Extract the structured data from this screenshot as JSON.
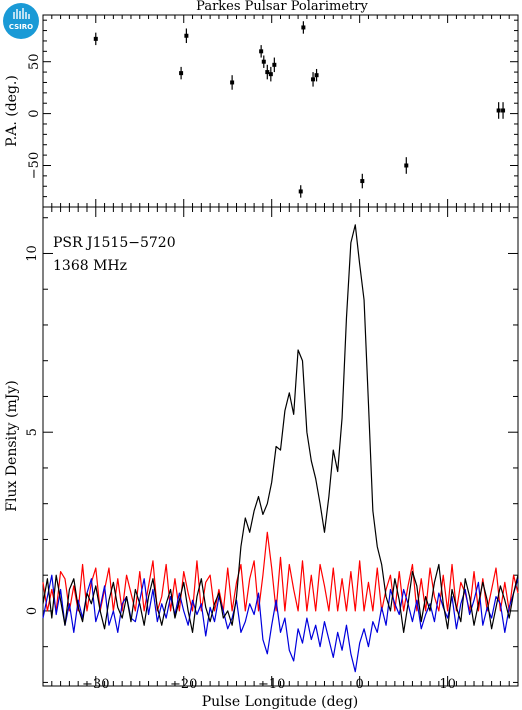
{
  "logo": {
    "text": "CSIRO",
    "color": "#1a9ad6"
  },
  "chart_data": [
    {
      "type": "scatter",
      "title": "Parkes Pulsar Polarimetry",
      "xlabel": "",
      "ylabel": "P.A. (deg.)",
      "xlim": [
        -36,
        18
      ],
      "ylim": [
        -90,
        95
      ],
      "yticks": [
        50,
        0,
        -50
      ],
      "ytick_labels": [
        "50",
        "0",
        "−50"
      ],
      "points": [
        {
          "x": -30.0,
          "y": 72,
          "err": 6
        },
        {
          "x": -20.3,
          "y": 39,
          "err": 6
        },
        {
          "x": -19.7,
          "y": 75,
          "err": 7
        },
        {
          "x": -14.5,
          "y": 30,
          "err": 7
        },
        {
          "x": -11.2,
          "y": 60,
          "err": 6
        },
        {
          "x": -10.9,
          "y": 50,
          "err": 6
        },
        {
          "x": -10.5,
          "y": 40,
          "err": 7
        },
        {
          "x": -10.1,
          "y": 38,
          "err": 7
        },
        {
          "x": -9.7,
          "y": 47,
          "err": 7
        },
        {
          "x": -6.4,
          "y": 83,
          "err": 6
        },
        {
          "x": -6.7,
          "y": -75,
          "err": 6
        },
        {
          "x": -5.3,
          "y": 33,
          "err": 7
        },
        {
          "x": -4.9,
          "y": 37,
          "err": 6
        },
        {
          "x": 0.3,
          "y": -65,
          "err": 7
        },
        {
          "x": 5.3,
          "y": -50,
          "err": 8
        },
        {
          "x": 15.8,
          "y": 3,
          "err": 8
        },
        {
          "x": 16.3,
          "y": 3,
          "err": 8
        }
      ]
    },
    {
      "type": "line",
      "title": "",
      "xlabel": "Pulse Longitude (deg)",
      "ylabel": "Flux Density (mJy)",
      "xlim": [
        -36,
        18
      ],
      "ylim": [
        -2.1,
        11.3
      ],
      "xticks": [
        -30,
        -20,
        -10,
        0,
        10
      ],
      "xtick_labels": [
        "−30",
        "−20",
        "−10",
        "0",
        "10"
      ],
      "yticks": [
        0,
        5,
        10
      ],
      "ytick_labels": [
        "0",
        "5",
        "10"
      ],
      "annotations": [
        "PSR J1515−5720",
        "1368 MHz"
      ],
      "series": [
        {
          "color": "#000000",
          "x": [
            -36,
            -35.5,
            -35,
            -34.5,
            -34,
            -33.5,
            -33,
            -32.5,
            -32,
            -31.5,
            -31,
            -30.5,
            -30,
            -29.5,
            -29,
            -28.5,
            -28,
            -27.5,
            -27,
            -26.5,
            -26,
            -25.5,
            -25,
            -24.5,
            -24,
            -23.5,
            -23,
            -22.5,
            -22,
            -21.5,
            -21,
            -20.5,
            -20,
            -19.5,
            -19,
            -18.5,
            -18,
            -17.5,
            -17,
            -16.5,
            -16,
            -15.5,
            -15,
            -14.5,
            -14,
            -13.5,
            -13,
            -12.5,
            -12,
            -11.5,
            -11,
            -10.5,
            -10,
            -9.5,
            -9,
            -8.5,
            -8,
            -7.5,
            -7,
            -6.5,
            -6,
            -5.5,
            -5,
            -4.5,
            -4,
            -3.5,
            -3,
            -2.5,
            -2,
            -1.5,
            -1,
            -0.5,
            0,
            0.5,
            1,
            1.5,
            2,
            2.5,
            3,
            3.5,
            4,
            4.5,
            5,
            5.5,
            6,
            6.5,
            7,
            7.5,
            8,
            8.5,
            9,
            9.5,
            10,
            10.5,
            11,
            11.5,
            12,
            12.5,
            13,
            13.5,
            14,
            14.5,
            15,
            15.5,
            16,
            16.5,
            17,
            17.5,
            18
          ],
          "y": [
            0.2,
            0.9,
            -0.2,
            1.0,
            0.3,
            -0.4,
            0.6,
            0.9,
            0.1,
            -0.3,
            0.5,
            0.2,
            0.7,
            0.0,
            -0.5,
            0.3,
            0.8,
            0.1,
            -0.2,
            0.4,
            -0.3,
            0.6,
            0.2,
            -0.4,
            0.4,
            0.9,
            0.1,
            -0.4,
            0.2,
            0.6,
            -0.2,
            0.3,
            0.8,
            0.0,
            -0.6,
            0.4,
            0.9,
            0.1,
            -0.3,
            0.2,
            0.5,
            -0.2,
            0.0,
            -0.4,
            0.4,
            1.8,
            2.6,
            2.2,
            2.8,
            3.2,
            2.7,
            3.0,
            3.6,
            4.6,
            4.5,
            5.6,
            6.1,
            5.5,
            7.3,
            7.0,
            5.0,
            4.2,
            3.7,
            3.0,
            2.2,
            3.2,
            4.5,
            3.9,
            5.4,
            8.2,
            10.3,
            10.8,
            9.7,
            8.7,
            5.8,
            2.8,
            1.8,
            1.3,
            0.4,
            0.0,
            0.9,
            0.3,
            -0.6,
            0.2,
            1.1,
            0.7,
            -0.3,
            0.4,
            0.0,
            0.8,
            1.3,
            0.2,
            -0.5,
            0.6,
            0.1,
            -0.3,
            0.9,
            0.4,
            -0.4,
            0.2,
            0.8,
            0.3,
            -0.5,
            0.1,
            0.7,
            0.3,
            -0.2,
            0.5,
            1.0
          ]
        },
        {
          "color": "#ff0000",
          "x": [
            -36,
            -35.5,
            -35,
            -34.5,
            -34,
            -33.5,
            -33,
            -32.5,
            -32,
            -31.5,
            -31,
            -30.5,
            -30,
            -29.5,
            -29,
            -28.5,
            -28,
            -27.5,
            -27,
            -26.5,
            -26,
            -25.5,
            -25,
            -24.5,
            -24,
            -23.5,
            -23,
            -22.5,
            -22,
            -21.5,
            -21,
            -20.5,
            -20,
            -19.5,
            -19,
            -18.5,
            -18,
            -17.5,
            -17,
            -16.5,
            -16,
            -15.5,
            -15,
            -14.5,
            -14,
            -13.5,
            -13,
            -12.5,
            -12,
            -11.5,
            -11,
            -10.5,
            -10,
            -9.5,
            -9,
            -8.5,
            -8,
            -7.5,
            -7,
            -6.5,
            -6,
            -5.5,
            -5,
            -4.5,
            -4,
            -3.5,
            -3,
            -2.5,
            -2,
            -1.5,
            -1,
            -0.5,
            0,
            0.5,
            1,
            1.5,
            2,
            2.5,
            3,
            3.5,
            4,
            4.5,
            5,
            5.5,
            6,
            6.5,
            7,
            7.5,
            8,
            8.5,
            9,
            9.5,
            10,
            10.5,
            11,
            11.5,
            12,
            12.5,
            13,
            13.5,
            14,
            14.5,
            15,
            15.5,
            16,
            16.5,
            17,
            17.5,
            18
          ],
          "y": [
            0.8,
            0.0,
            0.6,
            0.0,
            1.1,
            0.9,
            0.0,
            0.7,
            0.0,
            1.3,
            0.0,
            0.8,
            1.2,
            0.0,
            0.6,
            1.2,
            0.0,
            0.9,
            0.0,
            1.0,
            0.5,
            0.0,
            1.1,
            0.0,
            0.7,
            1.4,
            0.0,
            0.4,
            1.3,
            0.0,
            0.9,
            0.0,
            1.1,
            0.5,
            0.0,
            1.4,
            0.0,
            0.8,
            1.0,
            0.0,
            0.6,
            0.0,
            1.2,
            0.0,
            0.8,
            1.3,
            0.0,
            0.9,
            1.4,
            0.0,
            1.0,
            2.2,
            1.2,
            0.0,
            1.5,
            0.0,
            1.3,
            0.6,
            0.0,
            1.4,
            0.0,
            1.0,
            0.0,
            1.3,
            0.7,
            0.0,
            1.2,
            0.0,
            0.9,
            0.0,
            1.1,
            0.0,
            1.4,
            0.0,
            0.8,
            0.0,
            1.2,
            0.0,
            0.6,
            1.0,
            0.0,
            1.1,
            0.0,
            0.7,
            1.3,
            0.0,
            0.9,
            0.0,
            1.2,
            0.4,
            0.0,
            1.0,
            0.0,
            1.3,
            0.0,
            0.8,
            0.5,
            0.0,
            1.1,
            0.0,
            0.9,
            0.0,
            0.6,
            1.2,
            0.0,
            0.8,
            0.0,
            1.0,
            0.5
          ]
        },
        {
          "color": "#0000dd",
          "x": [
            -36,
            -35.5,
            -35,
            -34.5,
            -34,
            -33.5,
            -33,
            -32.5,
            -32,
            -31.5,
            -31,
            -30.5,
            -30,
            -29.5,
            -29,
            -28.5,
            -28,
            -27.5,
            -27,
            -26.5,
            -26,
            -25.5,
            -25,
            -24.5,
            -24,
            -23.5,
            -23,
            -22.5,
            -22,
            -21.5,
            -21,
            -20.5,
            -20,
            -19.5,
            -19,
            -18.5,
            -18,
            -17.5,
            -17,
            -16.5,
            -16,
            -15.5,
            -15,
            -14.5,
            -14,
            -13.5,
            -13,
            -12.5,
            -12,
            -11.5,
            -11,
            -10.5,
            -10,
            -9.5,
            -9,
            -8.5,
            -8,
            -7.5,
            -7,
            -6.5,
            -6,
            -5.5,
            -5,
            -4.5,
            -4,
            -3.5,
            -3,
            -2.5,
            -2,
            -1.5,
            -1,
            -0.5,
            0,
            0.5,
            1,
            1.5,
            2,
            2.5,
            3,
            3.5,
            4,
            4.5,
            5,
            5.5,
            6,
            6.5,
            7,
            7.5,
            8,
            8.5,
            9,
            9.5,
            10,
            10.5,
            11,
            11.5,
            12,
            12.5,
            13,
            13.5,
            14,
            14.5,
            15,
            15.5,
            16,
            16.5,
            17,
            17.5,
            18
          ],
          "y": [
            -0.2,
            0.4,
            1.0,
            -0.1,
            0.6,
            -0.4,
            0.2,
            -0.6,
            0.3,
            -0.2,
            0.5,
            0.9,
            -0.3,
            0.1,
            0.7,
            -0.4,
            0.0,
            -0.6,
            0.2,
            0.4,
            -0.2,
            -0.3,
            0.3,
            0.9,
            -0.1,
            0.6,
            -0.3,
            0.2,
            -0.2,
            0.4,
            -0.1,
            0.5,
            0.0,
            -0.4,
            0.3,
            -0.1,
            0.2,
            -0.7,
            0.1,
            -0.3,
            0.4,
            0.0,
            -0.5,
            -0.2,
            0.3,
            -0.6,
            -0.3,
            0.2,
            -0.1,
            0.5,
            -0.8,
            -1.2,
            -0.4,
            0.3,
            -0.6,
            -0.2,
            -1.1,
            -1.4,
            -0.5,
            -0.9,
            -0.2,
            -0.8,
            -0.4,
            -1.0,
            -0.3,
            -0.8,
            -1.3,
            -0.6,
            -1.1,
            -0.4,
            -1.2,
            -1.7,
            -0.9,
            -0.5,
            -1.0,
            -0.3,
            -0.6,
            0.1,
            -0.4,
            0.6,
            0.2,
            -0.1,
            0.6,
            0.2,
            -0.3,
            0.3,
            -0.5,
            -0.1,
            0.2,
            -0.3,
            0.5,
            0.1,
            -0.2,
            0.4,
            -0.5,
            0.2,
            0.6,
            -0.1,
            0.3,
            0.8,
            -0.4,
            0.1,
            -0.2,
            0.4,
            0.2,
            -0.6,
            0.1,
            0.5,
            0.9
          ]
        }
      ]
    }
  ]
}
